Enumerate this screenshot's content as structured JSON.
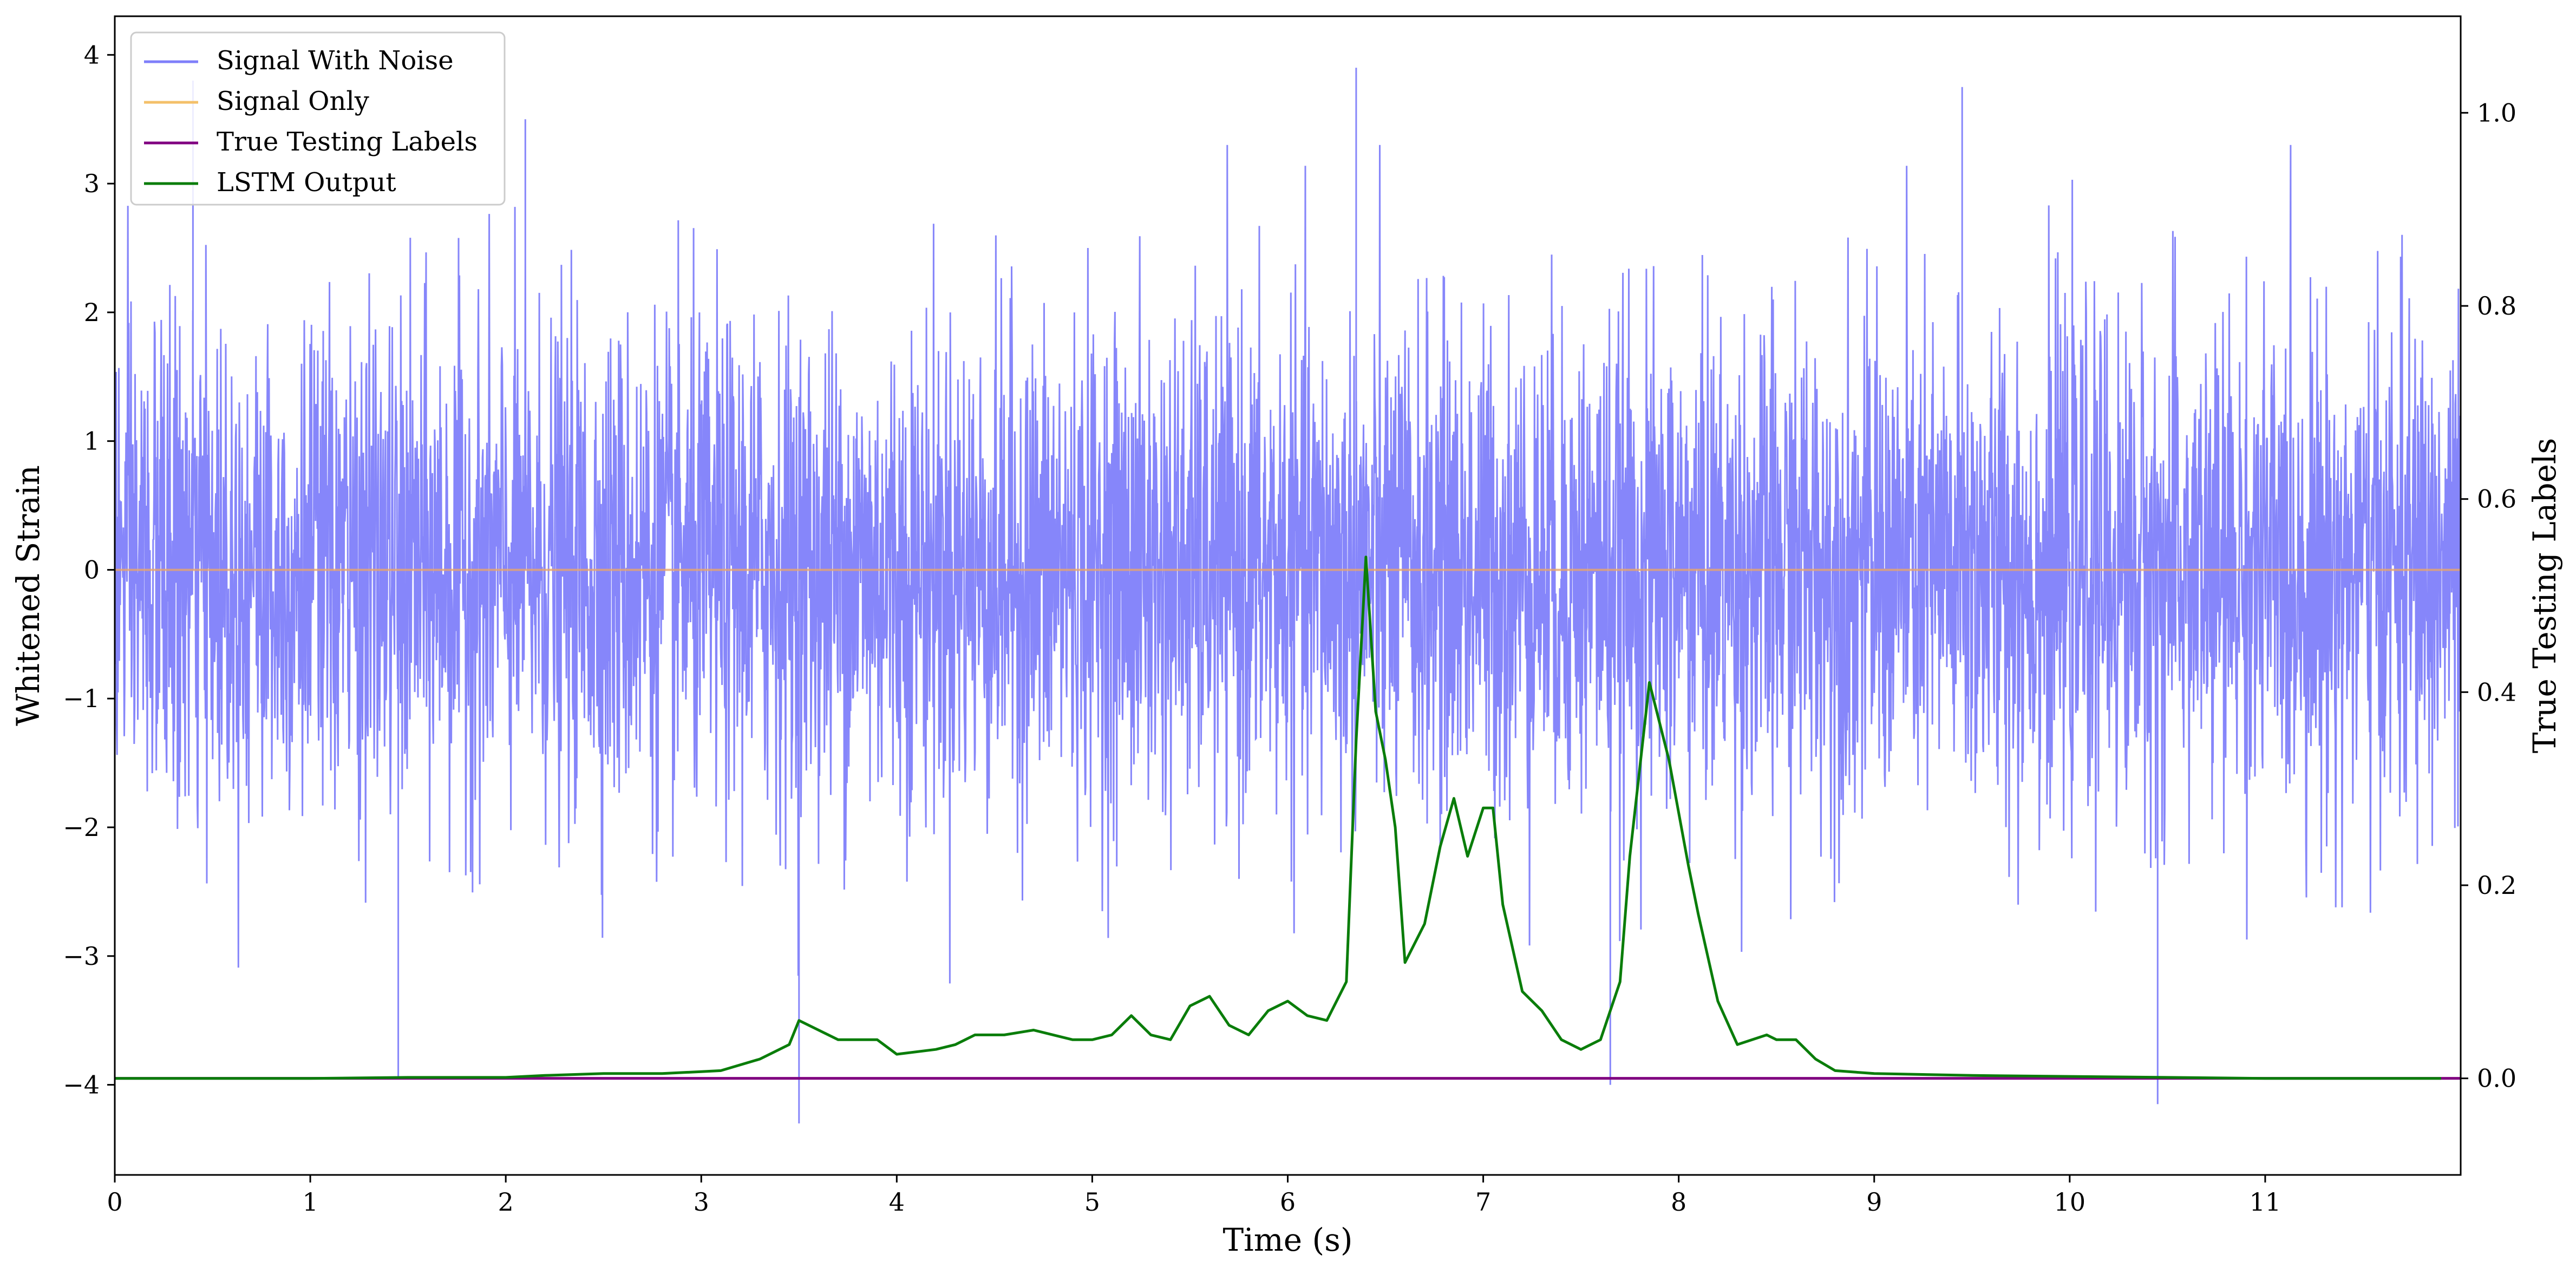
{
  "chart_data": {
    "type": "line",
    "xlabel": "Time (s)",
    "ylabel": "Whitened Strain",
    "y2label": "True Testing Labels",
    "xlim": [
      0,
      12
    ],
    "ylim": [
      -4.7,
      4.3
    ],
    "y2lim": [
      -0.1,
      1.1
    ],
    "x_ticks": [
      0,
      1,
      2,
      3,
      4,
      5,
      6,
      7,
      8,
      9,
      10,
      11
    ],
    "y_ticks": [
      -4,
      -3,
      -2,
      -1,
      0,
      1,
      2,
      3,
      4
    ],
    "y2_ticks": [
      0.0,
      0.2,
      0.4,
      0.6,
      0.8,
      1.0
    ],
    "y_tick_labels": [
      "−4",
      "−3",
      "−2",
      "−1",
      "0",
      "1",
      "2",
      "3",
      "4"
    ],
    "y2_tick_labels": [
      "0.0",
      "0.2",
      "0.4",
      "0.6",
      "0.8",
      "1.0"
    ],
    "legend": "upper-left",
    "grid": false,
    "series": [
      {
        "name": "Signal With Noise",
        "axis": "left",
        "color": "#7f7ffa",
        "note_shape": "dense noise, approx. range -4.3 to 3.9",
        "approx_envelope": {
          "typical_low": -2.0,
          "typical_high": 2.0
        },
        "notable_spikes": [
          [
            0.4,
            3.8
          ],
          [
            1.45,
            -3.95
          ],
          [
            2.1,
            3.5
          ],
          [
            3.5,
            -4.3
          ],
          [
            6.35,
            3.9
          ],
          [
            7.65,
            -4.0
          ],
          [
            9.45,
            3.75
          ],
          [
            10.45,
            -4.15
          ]
        ]
      },
      {
        "name": "Signal Only",
        "axis": "left",
        "color": "#f4c06a",
        "x": [
          0,
          12
        ],
        "y": [
          0,
          0
        ]
      },
      {
        "name": "True Testing Labels",
        "axis": "right",
        "color": "#800080",
        "x": [
          0,
          12
        ],
        "y": [
          0,
          0
        ]
      },
      {
        "name": "LSTM Output",
        "axis": "right",
        "color": "#0a7d0a",
        "x": [
          0,
          1.0,
          1.5,
          2.0,
          2.2,
          2.5,
          2.8,
          3.0,
          3.1,
          3.3,
          3.45,
          3.5,
          3.6,
          3.7,
          3.8,
          3.9,
          4.0,
          4.2,
          4.3,
          4.4,
          4.55,
          4.7,
          4.8,
          4.9,
          5.0,
          5.1,
          5.2,
          5.3,
          5.4,
          5.5,
          5.6,
          5.7,
          5.8,
          5.9,
          6.0,
          6.1,
          6.2,
          6.3,
          6.35,
          6.4,
          6.45,
          6.5,
          6.55,
          6.6,
          6.7,
          6.78,
          6.85,
          6.92,
          7.0,
          7.05,
          7.1,
          7.2,
          7.3,
          7.4,
          7.5,
          7.55,
          7.6,
          7.7,
          7.75,
          7.85,
          7.95,
          8.05,
          8.1,
          8.2,
          8.3,
          8.45,
          8.5,
          8.6,
          8.7,
          8.8,
          9.0,
          9.5,
          10.0,
          10.5,
          11.0,
          11.9
        ],
        "y": [
          0,
          0,
          0.001,
          0.001,
          0.003,
          0.005,
          0.005,
          0.007,
          0.008,
          0.02,
          0.035,
          0.06,
          0.05,
          0.04,
          0.04,
          0.04,
          0.025,
          0.03,
          0.035,
          0.045,
          0.045,
          0.05,
          0.045,
          0.04,
          0.04,
          0.045,
          0.065,
          0.045,
          0.04,
          0.075,
          0.085,
          0.055,
          0.045,
          0.07,
          0.08,
          0.065,
          0.06,
          0.1,
          0.35,
          0.54,
          0.38,
          0.33,
          0.26,
          0.12,
          0.16,
          0.24,
          0.29,
          0.23,
          0.28,
          0.28,
          0.18,
          0.09,
          0.07,
          0.04,
          0.03,
          0.035,
          0.04,
          0.1,
          0.23,
          0.41,
          0.33,
          0.22,
          0.17,
          0.08,
          0.035,
          0.045,
          0.04,
          0.04,
          0.02,
          0.008,
          0.005,
          0.003,
          0.002,
          0.001,
          0,
          0
        ]
      }
    ]
  }
}
